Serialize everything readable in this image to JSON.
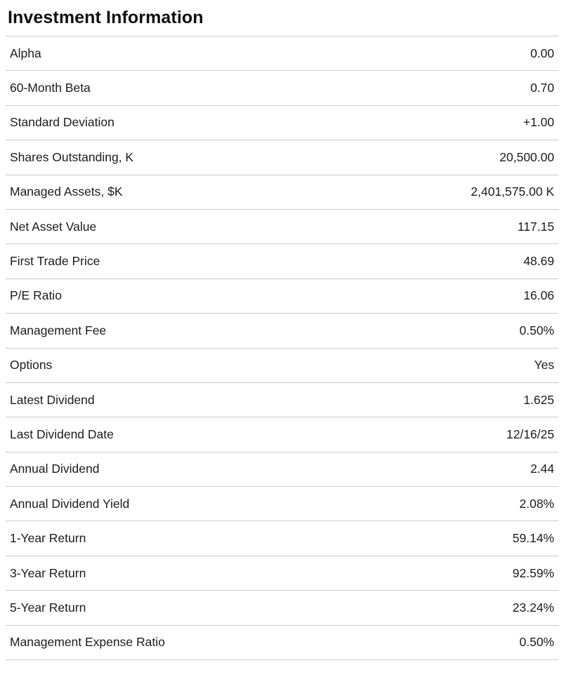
{
  "title": "Investment Information",
  "colors": {
    "background": "#ffffff",
    "title_text": "#0f0f0f",
    "row_text": "#1c1c1c",
    "divider": "#c9c9c9"
  },
  "table": {
    "rows": [
      {
        "label": "Alpha",
        "value": "0.00"
      },
      {
        "label": "60-Month Beta",
        "value": "0.70"
      },
      {
        "label": "Standard Deviation",
        "value": "+1.00"
      },
      {
        "label": "Shares Outstanding, K",
        "value": "20,500.00"
      },
      {
        "label": "Managed Assets, $K",
        "value": "2,401,575.00 K"
      },
      {
        "label": "Net Asset Value",
        "value": "117.15"
      },
      {
        "label": "First Trade Price",
        "value": "48.69"
      },
      {
        "label": "P/E Ratio",
        "value": "16.06"
      },
      {
        "label": "Management Fee",
        "value": "0.50%"
      },
      {
        "label": "Options",
        "value": "Yes"
      },
      {
        "label": "Latest Dividend",
        "value": "1.625"
      },
      {
        "label": "Last Dividend Date",
        "value": "12/16/25"
      },
      {
        "label": "Annual Dividend",
        "value": "2.44"
      },
      {
        "label": "Annual Dividend Yield",
        "value": "2.08%"
      },
      {
        "label": "1-Year Return",
        "value": "59.14%"
      },
      {
        "label": "3-Year Return",
        "value": "92.59%"
      },
      {
        "label": "5-Year Return",
        "value": "23.24%"
      },
      {
        "label": "Management Expense Ratio",
        "value": "0.50%"
      }
    ]
  }
}
